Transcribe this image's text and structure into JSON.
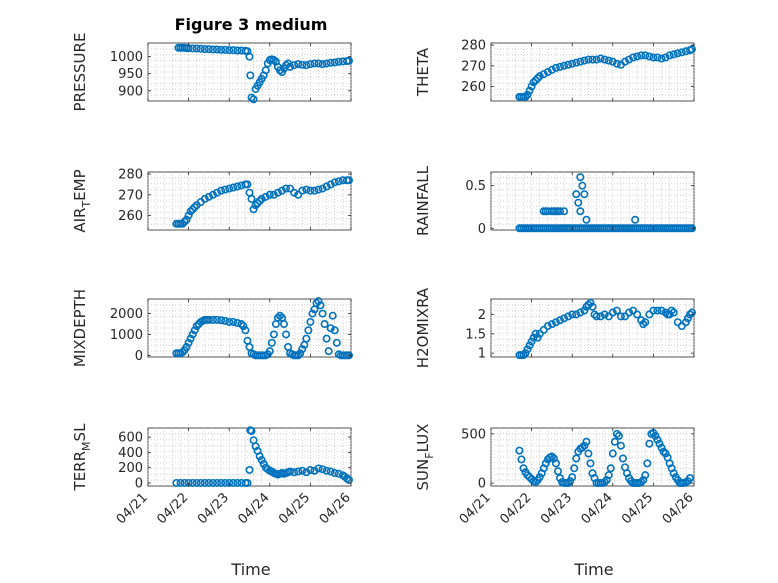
{
  "figure": {
    "title": "Figure 3 medium",
    "marker_color": "#0072BD",
    "xlabel": "Time",
    "xticks": [
      "04/21",
      "04/22",
      "04/23",
      "04/24",
      "04/25",
      "04/26"
    ]
  },
  "chart_data": [
    {
      "id": "pressure",
      "type": "scatter",
      "ylabel": "PRESSURE",
      "ylabel_sub": "",
      "ylabel_tail": "",
      "ylim": [
        870,
        1040
      ],
      "yticks": [
        900,
        950,
        1000
      ],
      "xlim": [
        0,
        5
      ],
      "grid": "on",
      "x": [
        0.75,
        0.8,
        0.85,
        0.9,
        0.95,
        1.0,
        1.1,
        1.2,
        1.3,
        1.4,
        1.5,
        1.6,
        1.7,
        1.8,
        1.9,
        2.0,
        2.1,
        2.2,
        2.3,
        2.4,
        2.45,
        2.5,
        2.52,
        2.55,
        2.6,
        2.65,
        2.7,
        2.75,
        2.8,
        2.85,
        2.9,
        2.95,
        3.0,
        3.05,
        3.1,
        3.15,
        3.2,
        3.25,
        3.3,
        3.35,
        3.4,
        3.45,
        3.5,
        3.6,
        3.7,
        3.8,
        3.9,
        4.0,
        4.1,
        4.2,
        4.3,
        4.4,
        4.5,
        4.6,
        4.7,
        4.8,
        4.9,
        4.95
      ],
      "y": [
        1026,
        1026,
        1026,
        1026,
        1025,
        1025,
        1024,
        1024,
        1023,
        1022,
        1022,
        1021,
        1021,
        1020,
        1020,
        1019,
        1019,
        1018,
        1018,
        1017,
        1016,
        1000,
        945,
        880,
        875,
        905,
        915,
        925,
        935,
        945,
        960,
        980,
        990,
        992,
        990,
        985,
        970,
        960,
        955,
        965,
        975,
        980,
        970,
        975,
        978,
        976,
        975,
        978,
        980,
        980,
        978,
        980,
        982,
        983,
        985,
        986,
        987,
        988
      ]
    },
    {
      "id": "theta",
      "type": "scatter",
      "ylabel": "THETA",
      "ylabel_sub": "",
      "ylabel_tail": "",
      "ylim": [
        253,
        281
      ],
      "yticks": [
        260,
        270,
        280
      ],
      "xlim": [
        0,
        5
      ],
      "grid": "on",
      "x": [
        0.7,
        0.75,
        0.8,
        0.85,
        0.9,
        0.95,
        1.0,
        1.05,
        1.1,
        1.15,
        1.2,
        1.3,
        1.4,
        1.5,
        1.6,
        1.7,
        1.8,
        1.9,
        2.0,
        2.1,
        2.2,
        2.3,
        2.4,
        2.5,
        2.6,
        2.7,
        2.8,
        2.9,
        3.0,
        3.1,
        3.2,
        3.3,
        3.4,
        3.5,
        3.6,
        3.7,
        3.8,
        3.9,
        4.0,
        4.1,
        4.2,
        4.3,
        4.4,
        4.5,
        4.6,
        4.7,
        4.8,
        4.9,
        4.95
      ],
      "y": [
        255,
        255,
        255,
        255,
        256,
        258,
        260,
        262,
        263,
        264,
        265,
        266,
        267,
        268,
        269,
        269.5,
        270,
        270.5,
        271,
        271.5,
        272,
        272.5,
        273,
        273,
        273,
        273.5,
        273,
        272.5,
        272,
        271,
        270.5,
        272,
        273,
        274,
        274.5,
        275,
        275,
        274.5,
        274,
        274,
        273.5,
        274,
        275,
        275.5,
        276,
        276.5,
        277,
        277.5,
        278
      ]
    },
    {
      "id": "air_temp",
      "type": "scatter",
      "ylabel": "AIR",
      "ylabel_sub": "T",
      "ylabel_tail": "EMP",
      "ylim": [
        253,
        281
      ],
      "yticks": [
        260,
        270,
        280
      ],
      "xlim": [
        0,
        5
      ],
      "grid": "on",
      "x": [
        0.7,
        0.75,
        0.8,
        0.85,
        0.9,
        0.95,
        1.0,
        1.05,
        1.1,
        1.15,
        1.2,
        1.3,
        1.4,
        1.5,
        1.6,
        1.7,
        1.8,
        1.9,
        2.0,
        2.1,
        2.2,
        2.3,
        2.4,
        2.45,
        2.5,
        2.55,
        2.6,
        2.65,
        2.7,
        2.75,
        2.8,
        2.9,
        3.0,
        3.1,
        3.2,
        3.3,
        3.4,
        3.5,
        3.6,
        3.7,
        3.8,
        3.9,
        4.0,
        4.1,
        4.2,
        4.3,
        4.4,
        4.5,
        4.6,
        4.7,
        4.8,
        4.9,
        4.95
      ],
      "y": [
        256,
        256,
        256,
        256,
        257,
        258,
        260,
        262,
        263,
        264,
        265,
        266.5,
        268,
        269,
        270,
        271,
        272,
        272.5,
        273,
        273.5,
        274,
        274.5,
        275,
        275,
        271,
        268,
        263,
        265,
        266,
        267,
        268,
        269,
        270,
        270,
        271,
        272,
        273,
        273,
        271,
        270,
        272,
        272.5,
        272,
        272,
        272.5,
        273,
        274,
        275,
        276,
        276.5,
        277,
        277,
        277
      ]
    },
    {
      "id": "rainfall",
      "type": "scatter",
      "ylabel": "RAINFALL",
      "ylabel_sub": "",
      "ylabel_tail": "",
      "ylim": [
        -0.02,
        0.66
      ],
      "yticks": [
        0,
        0.5
      ],
      "ytick_labels": [
        "0",
        "0.5"
      ],
      "xlim": [
        0,
        5
      ],
      "grid": "on",
      "x": [
        0.7,
        0.75,
        0.8,
        0.85,
        0.9,
        0.95,
        1.0,
        1.05,
        1.1,
        1.15,
        1.2,
        1.25,
        1.3,
        1.35,
        1.4,
        1.45,
        1.5,
        1.55,
        1.6,
        1.65,
        1.7,
        1.75,
        1.8,
        1.85,
        1.9,
        1.95,
        2.0,
        2.05,
        2.1,
        2.15,
        2.2,
        2.25,
        2.3,
        2.35,
        2.4,
        2.45,
        2.5,
        2.55,
        2.6,
        2.65,
        2.7,
        2.75,
        2.8,
        2.85,
        2.9,
        2.95,
        3.0,
        3.05,
        3.1,
        3.15,
        3.2,
        3.25,
        3.3,
        3.35,
        3.4,
        3.45,
        3.5,
        3.55,
        3.6,
        3.65,
        3.7,
        3.75,
        3.8,
        3.85,
        3.9,
        3.95,
        4.0,
        4.05,
        4.1,
        4.15,
        4.2,
        4.25,
        4.3,
        4.35,
        4.4,
        4.45,
        4.5,
        4.55,
        4.6,
        4.65,
        4.7,
        4.75,
        4.8,
        4.85,
        4.9,
        4.95,
        1.3,
        1.35,
        1.4,
        1.5,
        1.55,
        1.6,
        1.65,
        1.7,
        1.8,
        2.1,
        2.15,
        2.2,
        2.25,
        2.3,
        2.2,
        2.35,
        3.55
      ],
      "y": [
        0,
        0,
        0,
        0,
        0,
        0,
        0,
        0,
        0,
        0,
        0,
        0,
        0,
        0,
        0,
        0,
        0,
        0,
        0,
        0,
        0,
        0,
        0,
        0,
        0,
        0,
        0,
        0,
        0,
        0,
        0,
        0,
        0,
        0,
        0,
        0,
        0,
        0,
        0,
        0,
        0,
        0,
        0,
        0,
        0,
        0,
        0,
        0,
        0,
        0,
        0,
        0,
        0,
        0,
        0,
        0,
        0,
        0,
        0,
        0,
        0,
        0,
        0,
        0,
        0,
        0,
        0,
        0,
        0,
        0,
        0,
        0,
        0,
        0,
        0,
        0,
        0,
        0,
        0,
        0,
        0,
        0,
        0,
        0,
        0,
        0,
        0.2,
        0.2,
        0.2,
        0.2,
        0.2,
        0.2,
        0.2,
        0.2,
        0.2,
        0.4,
        0.3,
        0.6,
        0.5,
        0.4,
        0.2,
        0.1,
        0.1
      ]
    },
    {
      "id": "mixdepth",
      "type": "scatter",
      "ylabel": "MIXDEPTH",
      "ylabel_sub": "",
      "ylabel_tail": "",
      "ylim": [
        -80,
        2700
      ],
      "yticks": [
        0,
        1000,
        2000
      ],
      "xlim": [
        0,
        5
      ],
      "grid": "on",
      "x": [
        0.7,
        0.75,
        0.8,
        0.85,
        0.9,
        0.95,
        1.0,
        1.05,
        1.1,
        1.15,
        1.2,
        1.25,
        1.3,
        1.35,
        1.4,
        1.45,
        1.5,
        1.6,
        1.7,
        1.8,
        1.9,
        2.0,
        2.1,
        2.2,
        2.3,
        2.35,
        2.4,
        2.45,
        2.5,
        2.55,
        2.6,
        2.65,
        2.7,
        2.75,
        2.8,
        2.85,
        2.9,
        2.95,
        3.0,
        3.05,
        3.1,
        3.15,
        3.2,
        3.25,
        3.3,
        3.35,
        3.4,
        3.45,
        3.5,
        3.55,
        3.6,
        3.65,
        3.7,
        3.75,
        3.8,
        3.85,
        3.9,
        3.95,
        4.0,
        4.05,
        4.1,
        4.15,
        4.2,
        4.25,
        4.3,
        4.35,
        4.4,
        4.45,
        4.5,
        4.55,
        4.6,
        4.65,
        4.7,
        4.75,
        4.8,
        4.85,
        4.9,
        4.95
      ],
      "y": [
        100,
        100,
        100,
        150,
        250,
        400,
        600,
        800,
        1000,
        1200,
        1400,
        1500,
        1600,
        1650,
        1700,
        1700,
        1700,
        1700,
        1700,
        1680,
        1650,
        1600,
        1600,
        1550,
        1500,
        1400,
        1200,
        700,
        400,
        100,
        50,
        0,
        0,
        0,
        0,
        0,
        0,
        50,
        200,
        600,
        1000,
        1500,
        1800,
        1900,
        1800,
        1500,
        1000,
        400,
        100,
        50,
        0,
        0,
        0,
        100,
        300,
        500,
        800,
        1200,
        1600,
        2000,
        2200,
        2500,
        2600,
        2400,
        2000,
        1500,
        800,
        200,
        1300,
        1900,
        1200,
        600,
        50,
        0,
        0,
        0,
        0,
        0
      ]
    },
    {
      "id": "h2omixra",
      "type": "scatter",
      "ylabel": "H2OMIXRA",
      "ylabel_sub": "",
      "ylabel_tail": "",
      "ylim": [
        0.9,
        2.4
      ],
      "yticks": [
        1,
        1.5,
        2
      ],
      "ytick_labels": [
        "1",
        "1.5",
        "2"
      ],
      "xlim": [
        0,
        5
      ],
      "grid": "on",
      "x": [
        0.7,
        0.75,
        0.8,
        0.85,
        0.9,
        0.95,
        1.0,
        1.05,
        1.1,
        1.15,
        1.2,
        1.3,
        1.4,
        1.5,
        1.6,
        1.7,
        1.8,
        1.9,
        2.0,
        2.1,
        2.2,
        2.3,
        2.35,
        2.4,
        2.45,
        2.5,
        2.55,
        2.6,
        2.7,
        2.8,
        2.9,
        3.0,
        3.1,
        3.2,
        3.3,
        3.4,
        3.5,
        3.6,
        3.7,
        3.75,
        3.8,
        3.9,
        4.0,
        4.1,
        4.2,
        4.3,
        4.35,
        4.4,
        4.45,
        4.5,
        4.6,
        4.7,
        4.8,
        4.85,
        4.9,
        4.95
      ],
      "y": [
        0.95,
        0.95,
        0.95,
        1.0,
        1.1,
        1.2,
        1.3,
        1.4,
        1.5,
        1.4,
        1.5,
        1.6,
        1.7,
        1.75,
        1.8,
        1.85,
        1.9,
        1.95,
        2.0,
        2.0,
        2.05,
        2.1,
        2.2,
        2.25,
        2.3,
        2.2,
        2.0,
        1.95,
        1.95,
        2.0,
        1.95,
        2.05,
        2.1,
        1.95,
        1.95,
        2.05,
        2.1,
        2.0,
        1.85,
        1.75,
        1.8,
        2.0,
        2.1,
        2.1,
        2.1,
        2.05,
        2.0,
        2.0,
        2.1,
        2.05,
        1.8,
        1.7,
        1.8,
        1.9,
        2.0,
        2.05
      ]
    },
    {
      "id": "terr_msl",
      "type": "scatter",
      "ylabel": "TERR",
      "ylabel_sub": "M",
      "ylabel_tail": "SL",
      "ylim": [
        -40,
        720
      ],
      "yticks": [
        0,
        200,
        400,
        600
      ],
      "xlim": [
        0,
        5
      ],
      "grid": "on",
      "x": [
        0.7,
        0.8,
        0.9,
        1.0,
        1.1,
        1.2,
        1.3,
        1.4,
        1.5,
        1.6,
        1.7,
        1.8,
        1.9,
        2.0,
        2.1,
        2.2,
        2.3,
        2.4,
        2.45,
        2.5,
        2.52,
        2.55,
        2.6,
        2.65,
        2.7,
        2.75,
        2.8,
        2.85,
        2.9,
        2.95,
        3.0,
        3.05,
        3.1,
        3.15,
        3.2,
        3.25,
        3.3,
        3.35,
        3.4,
        3.45,
        3.5,
        3.6,
        3.7,
        3.8,
        3.9,
        4.0,
        4.1,
        4.2,
        4.3,
        4.4,
        4.5,
        4.6,
        4.7,
        4.8,
        4.85,
        4.9,
        4.95
      ],
      "y": [
        0,
        0,
        0,
        0,
        0,
        0,
        0,
        0,
        0,
        0,
        0,
        0,
        0,
        0,
        0,
        0,
        0,
        0,
        0,
        170,
        690,
        680,
        560,
        480,
        420,
        350,
        300,
        250,
        200,
        180,
        160,
        150,
        130,
        120,
        110,
        120,
        130,
        120,
        130,
        140,
        150,
        140,
        150,
        160,
        140,
        170,
        160,
        190,
        180,
        160,
        150,
        130,
        120,
        100,
        80,
        60,
        40
      ]
    },
    {
      "id": "sun_flux",
      "type": "scatter",
      "ylabel": "SUN",
      "ylabel_sub": "F",
      "ylabel_tail": "LUX",
      "ylim": [
        -30,
        560
      ],
      "yticks": [
        0,
        500
      ],
      "xlim": [
        0,
        5
      ],
      "grid": "on",
      "x": [
        0.7,
        0.75,
        0.8,
        0.85,
        0.9,
        0.95,
        1.0,
        1.05,
        1.1,
        1.15,
        1.2,
        1.25,
        1.3,
        1.35,
        1.4,
        1.45,
        1.5,
        1.55,
        1.6,
        1.65,
        1.7,
        1.75,
        1.8,
        1.85,
        1.9,
        1.95,
        2.0,
        2.05,
        2.1,
        2.15,
        2.2,
        2.25,
        2.3,
        2.35,
        2.4,
        2.45,
        2.5,
        2.55,
        2.6,
        2.65,
        2.7,
        2.75,
        2.8,
        2.85,
        2.9,
        2.95,
        3.0,
        3.05,
        3.1,
        3.15,
        3.2,
        3.25,
        3.3,
        3.35,
        3.4,
        3.45,
        3.5,
        3.55,
        3.6,
        3.65,
        3.7,
        3.75,
        3.8,
        3.85,
        3.9,
        3.95,
        4.0,
        4.05,
        4.1,
        4.15,
        4.2,
        4.25,
        4.3,
        4.35,
        4.4,
        4.45,
        4.5,
        4.55,
        4.6,
        4.65,
        4.7,
        4.75,
        4.8,
        4.85,
        4.9
      ],
      "y": [
        330,
        240,
        150,
        110,
        80,
        60,
        40,
        20,
        10,
        30,
        60,
        100,
        150,
        200,
        240,
        260,
        270,
        250,
        200,
        120,
        50,
        10,
        0,
        0,
        0,
        20,
        60,
        150,
        250,
        320,
        350,
        360,
        380,
        420,
        300,
        200,
        100,
        50,
        0,
        0,
        0,
        0,
        10,
        30,
        80,
        150,
        300,
        420,
        500,
        480,
        380,
        250,
        160,
        100,
        50,
        20,
        0,
        0,
        0,
        0,
        10,
        30,
        80,
        200,
        400,
        500,
        510,
        480,
        440,
        400,
        360,
        320,
        300,
        260,
        200,
        150,
        100,
        60,
        30,
        0,
        0,
        0,
        10,
        20,
        50
      ]
    }
  ]
}
